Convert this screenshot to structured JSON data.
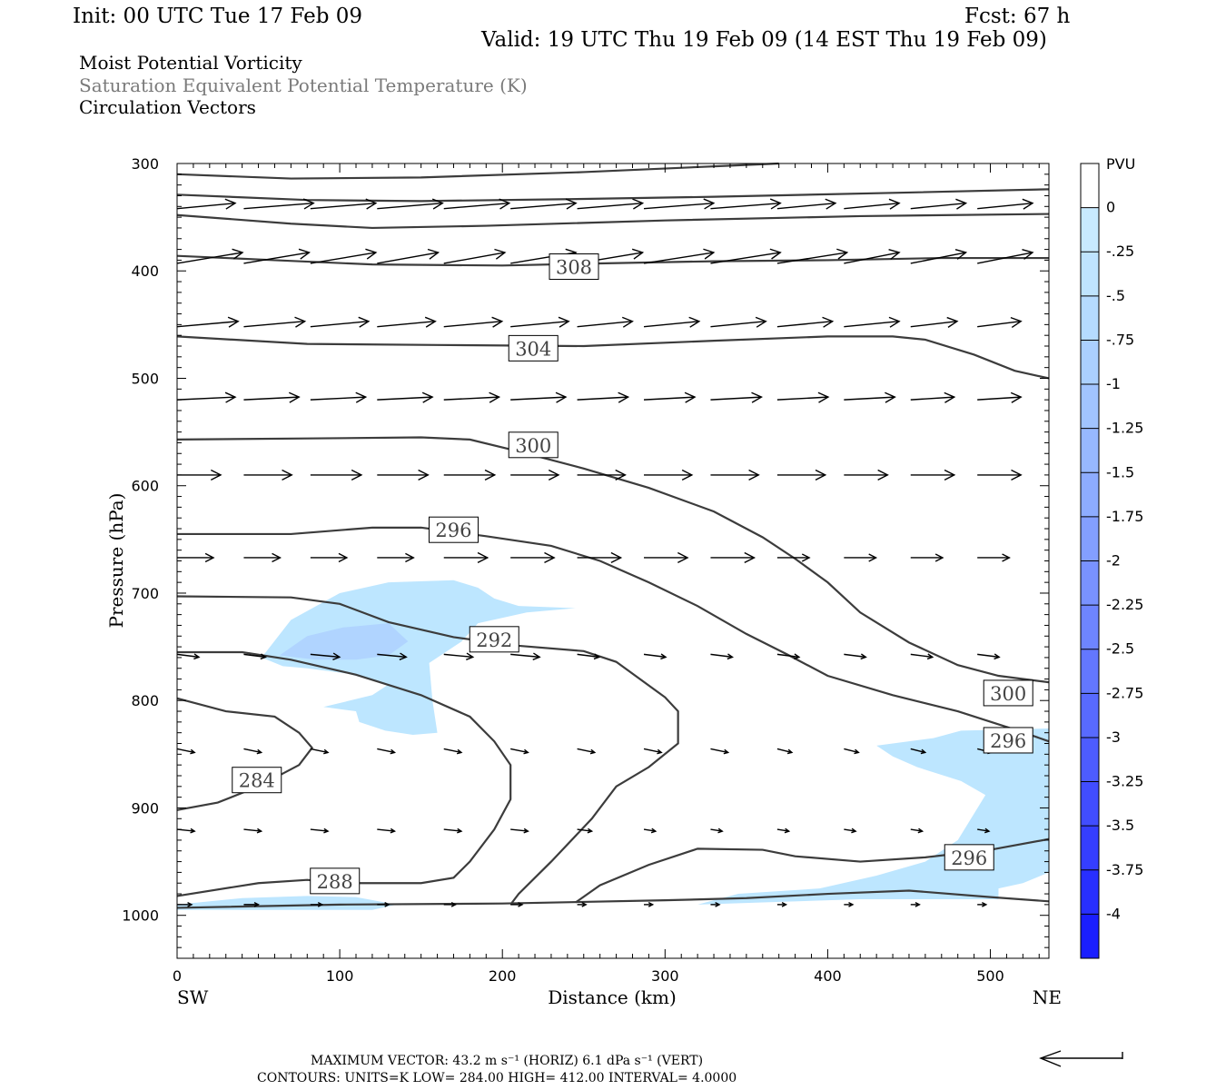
{
  "header": {
    "init": "Init: 00 UTC Tue 17 Feb 09",
    "fcst": "Fcst:   67 h",
    "valid": "Valid: 19 UTC Thu 19 Feb 09 (14 EST Thu 19 Feb 09)",
    "fields": [
      "Moist Potential Vorticity",
      "Saturation Equivalent Potential Temperature (K)",
      "Circulation Vectors"
    ]
  },
  "chart_data": {
    "type": "cross-section",
    "xlabel": "Distance (km)",
    "ylabel": "Pressure (hPa)",
    "x_ticks": [
      0,
      100,
      200,
      300,
      400,
      500
    ],
    "x_tick_labels": [
      "0",
      "100",
      "200",
      "300",
      "400",
      "500"
    ],
    "y_ticks": [
      300,
      400,
      500,
      600,
      700,
      800,
      900,
      1000
    ],
    "y_tick_labels": [
      "300",
      "400",
      "500",
      "600",
      "700",
      "800",
      "900",
      "1000"
    ],
    "xlim": [
      0,
      536
    ],
    "ylim": [
      300,
      1040
    ],
    "y_reversed": true,
    "end_labels": {
      "left": "SW",
      "right": "NE"
    },
    "colorbar": {
      "unit": "PVU",
      "labels": [
        "0",
        "-.25",
        "-.5",
        "-.75",
        "-1",
        "-1.25",
        "-1.5",
        "-1.75",
        "-2",
        "-2.25",
        "-2.5",
        "-2.75",
        "-3",
        "-3.25",
        "-3.5",
        "-3.75",
        "-4"
      ],
      "fill_colors": [
        "#ffffff",
        "#ffffff",
        "#c8eaff",
        "#bfe4ff",
        "#b5dbff",
        "#abd0ff",
        "#a1c4ff",
        "#97b8ff",
        "#8dacff",
        "#839fff",
        "#7992ff",
        "#6e85ff",
        "#6377ff",
        "#586aff",
        "#4d5cff",
        "#414dff",
        "#353eff",
        "#282fff",
        "#1a1eff",
        "#0a0aff"
      ]
    },
    "pv_regions": [
      {
        "level": "-.25",
        "color": "#bde6ff",
        "points": [
          [
            52,
            760
          ],
          [
            70,
            725
          ],
          [
            100,
            700
          ],
          [
            130,
            690
          ],
          [
            170,
            688
          ],
          [
            185,
            695
          ],
          [
            195,
            705
          ],
          [
            210,
            712
          ],
          [
            245,
            714
          ],
          [
            215,
            718
          ],
          [
            185,
            728
          ],
          [
            175,
            745
          ],
          [
            155,
            765
          ],
          [
            157,
            800
          ],
          [
            160,
            830
          ],
          [
            145,
            832
          ],
          [
            128,
            828
          ],
          [
            112,
            820
          ],
          [
            110,
            810
          ],
          [
            90,
            806
          ],
          [
            120,
            795
          ],
          [
            130,
            785
          ],
          [
            105,
            775
          ],
          [
            80,
            770
          ],
          [
            65,
            768
          ]
        ]
      },
      {
        "level": "-.5",
        "color": "#b0d4ff",
        "points": [
          [
            63,
            758
          ],
          [
            80,
            740
          ],
          [
            102,
            732
          ],
          [
            130,
            728
          ],
          [
            142,
            745
          ],
          [
            130,
            758
          ],
          [
            110,
            762
          ],
          [
            85,
            762
          ]
        ]
      },
      {
        "level": "-.25",
        "color": "#bde6ff",
        "points": [
          [
            430,
            842
          ],
          [
            465,
            835
          ],
          [
            482,
            828
          ],
          [
            536,
            826
          ],
          [
            536,
            960
          ],
          [
            520,
            970
          ],
          [
            505,
            975
          ],
          [
            505,
            985
          ],
          [
            420,
            985
          ],
          [
            360,
            988
          ],
          [
            320,
            990
          ],
          [
            345,
            980
          ],
          [
            395,
            975
          ],
          [
            430,
            963
          ],
          [
            460,
            950
          ],
          [
            480,
            930
          ],
          [
            497,
            888
          ],
          [
            482,
            875
          ],
          [
            455,
            862
          ],
          [
            440,
            852
          ]
        ]
      },
      {
        "level": "-.25",
        "color": "#bde6ff",
        "points": [
          [
            0,
            990
          ],
          [
            40,
            984
          ],
          [
            80,
            982
          ],
          [
            110,
            983
          ],
          [
            135,
            990
          ],
          [
            120,
            995
          ],
          [
            60,
            995
          ],
          [
            0,
            995
          ]
        ]
      }
    ],
    "isentropes": [
      {
        "points": [
          [
            0,
            310
          ],
          [
            70,
            314
          ],
          [
            150,
            313
          ],
          [
            250,
            308
          ],
          [
            340,
            302
          ],
          [
            370,
            300
          ]
        ]
      },
      {
        "points": [
          [
            0,
            329
          ],
          [
            80,
            334
          ],
          [
            150,
            335
          ],
          [
            250,
            333
          ],
          [
            330,
            331
          ],
          [
            450,
            327
          ],
          [
            536,
            324
          ]
        ]
      },
      {
        "points": [
          [
            0,
            348
          ],
          [
            70,
            356
          ],
          [
            120,
            360
          ],
          [
            190,
            358
          ],
          [
            300,
            353
          ],
          [
            420,
            349
          ],
          [
            536,
            347
          ]
        ]
      },
      {
        "value": 308,
        "points": [
          [
            0,
            386
          ],
          [
            60,
            390
          ],
          [
            120,
            394
          ],
          [
            200,
            395
          ],
          [
            260,
            393
          ],
          [
            330,
            391
          ],
          [
            400,
            390
          ],
          [
            470,
            388
          ],
          [
            536,
            388
          ]
        ]
      },
      {
        "value": 304,
        "points": [
          [
            0,
            461
          ],
          [
            80,
            468
          ],
          [
            160,
            469
          ],
          [
            250,
            470
          ],
          [
            330,
            465
          ],
          [
            400,
            461
          ],
          [
            440,
            461
          ],
          [
            460,
            464
          ],
          [
            490,
            478
          ],
          [
            515,
            493
          ],
          [
            536,
            500
          ]
        ]
      },
      {
        "value": 300,
        "points": [
          [
            0,
            557
          ],
          [
            80,
            556
          ],
          [
            150,
            555
          ],
          [
            180,
            557
          ],
          [
            210,
            568
          ],
          [
            250,
            584
          ],
          [
            290,
            602
          ],
          [
            330,
            624
          ],
          [
            360,
            648
          ],
          [
            380,
            668
          ],
          [
            400,
            690
          ],
          [
            420,
            718
          ],
          [
            450,
            746
          ],
          [
            480,
            767
          ],
          [
            505,
            777
          ],
          [
            536,
            783
          ]
        ]
      },
      {
        "value": 296,
        "points": [
          [
            0,
            645
          ],
          [
            70,
            645
          ],
          [
            120,
            639
          ],
          [
            150,
            639
          ],
          [
            190,
            647
          ],
          [
            230,
            656
          ],
          [
            260,
            670
          ],
          [
            290,
            690
          ],
          [
            320,
            712
          ],
          [
            350,
            738
          ],
          [
            375,
            757
          ],
          [
            400,
            777
          ],
          [
            440,
            795
          ],
          [
            480,
            810
          ],
          [
            515,
            827
          ],
          [
            536,
            838
          ]
        ]
      },
      {
        "value": 292,
        "points": [
          [
            0,
            703
          ],
          [
            70,
            704
          ],
          [
            100,
            710
          ],
          [
            130,
            727
          ],
          [
            170,
            741
          ],
          [
            210,
            749
          ],
          [
            250,
            754
          ],
          [
            270,
            764
          ],
          [
            300,
            797
          ],
          [
            308,
            810
          ],
          [
            308,
            840
          ],
          [
            290,
            862
          ],
          [
            270,
            880
          ],
          [
            255,
            910
          ],
          [
            230,
            950
          ],
          [
            210,
            980
          ],
          [
            205,
            990
          ]
        ]
      },
      {
        "points": [
          [
            0,
            755
          ],
          [
            40,
            755
          ],
          [
            70,
            762
          ],
          [
            110,
            776
          ],
          [
            150,
            795
          ],
          [
            180,
            815
          ],
          [
            195,
            838
          ],
          [
            205,
            860
          ],
          [
            205,
            892
          ],
          [
            195,
            920
          ],
          [
            180,
            950
          ],
          [
            170,
            965
          ],
          [
            150,
            970
          ],
          [
            100,
            970
          ],
          [
            80,
            967
          ],
          [
            50,
            970
          ],
          [
            0,
            982
          ]
        ]
      },
      {
        "points": [
          [
            0,
            798
          ],
          [
            30,
            810
          ],
          [
            60,
            815
          ],
          [
            75,
            830
          ],
          [
            83,
            844
          ],
          [
            75,
            860
          ],
          [
            50,
            880
          ],
          [
            25,
            895
          ],
          [
            0,
            902
          ]
        ]
      },
      {
        "points": [
          [
            0,
            993
          ],
          [
            100,
            990
          ],
          [
            200,
            989
          ],
          [
            300,
            986
          ],
          [
            350,
            984
          ],
          [
            400,
            980
          ],
          [
            450,
            977
          ],
          [
            500,
            983
          ],
          [
            536,
            987
          ]
        ]
      },
      {
        "value": 296,
        "points": [
          [
            245,
            988
          ],
          [
            260,
            972
          ],
          [
            290,
            953
          ],
          [
            320,
            938
          ],
          [
            360,
            939
          ],
          [
            380,
            945
          ],
          [
            420,
            950
          ],
          [
            460,
            946
          ],
          [
            500,
            939
          ],
          [
            536,
            929
          ]
        ]
      }
    ],
    "contour_labels": [
      {
        "text": "308",
        "x": 244,
        "y": 396
      },
      {
        "text": "304",
        "x": 219,
        "y": 472
      },
      {
        "text": "300",
        "x": 219,
        "y": 562
      },
      {
        "text": "296",
        "x": 170,
        "y": 641
      },
      {
        "text": "292",
        "x": 195,
        "y": 743
      },
      {
        "text": "300",
        "x": 511,
        "y": 793
      },
      {
        "text": "296",
        "x": 511,
        "y": 837
      },
      {
        "text": "284",
        "x": 49,
        "y": 874
      },
      {
        "text": "288",
        "x": 97,
        "y": 968
      },
      {
        "text": "296",
        "x": 487,
        "y": 946
      }
    ],
    "vector_rows": [
      {
        "p": 342,
        "ddp": 3,
        "u": [
          40,
          48,
          45,
          45,
          45,
          45,
          45,
          48,
          48,
          40,
          38,
          38,
          38
        ],
        "x0": 0
      },
      {
        "p": 393,
        "ddp": 6,
        "u": [
          45,
          45,
          45,
          42,
          42,
          45,
          45,
          48,
          48,
          48,
          38,
          38,
          38
        ],
        "x0": 0
      },
      {
        "p": 452,
        "ddp": 3,
        "u": [
          42,
          42,
          40,
          40,
          40,
          40,
          38,
          38,
          38,
          38,
          38,
          32,
          30
        ],
        "x0": 0
      },
      {
        "p": 520,
        "ddp": 1.5,
        "u": [
          40,
          38,
          38,
          38,
          38,
          38,
          35,
          35,
          35,
          35,
          35,
          30,
          30
        ],
        "x0": 0
      },
      {
        "p": 590,
        "ddp": 0,
        "u": [
          30,
          33,
          35,
          35,
          35,
          33,
          33,
          33,
          33,
          33,
          30,
          30,
          30
        ],
        "x0": 0
      },
      {
        "p": 667,
        "ddp": 0,
        "u": [
          25,
          25,
          25,
          25,
          30,
          30,
          30,
          30,
          30,
          22,
          22,
          22,
          22
        ],
        "x0": 0
      },
      {
        "p": 757,
        "ddp": -1.5,
        "u": [
          15,
          15,
          20,
          20,
          20,
          20,
          15,
          15,
          15,
          15,
          15,
          15,
          15
        ],
        "x0": 0
      },
      {
        "p": 845,
        "ddp": -2,
        "u": [
          12,
          12,
          12,
          12,
          12,
          12,
          12,
          12,
          12,
          10,
          10,
          10,
          10
        ],
        "x0": 0
      },
      {
        "p": 920,
        "ddp": -1,
        "u": [
          12,
          12,
          12,
          12,
          12,
          12,
          10,
          8,
          8,
          8,
          8,
          8,
          8
        ],
        "x0": 0
      },
      {
        "p": 990,
        "ddp": 0,
        "u": [
          10,
          10,
          8,
          8,
          8,
          8,
          6,
          6,
          6,
          6,
          6,
          6,
          6
        ],
        "x0": 0
      }
    ]
  },
  "footer": {
    "max_vector": "MAXIMUM VECTOR:  43.2 m s⁻¹ (HORIZ)          6.1 dPa s⁻¹ (VERT)",
    "contours": "CONTOURS:  UNITS=K  LOW=  284.00        HIGH=  412.00        INTERVAL=    4.0000"
  }
}
